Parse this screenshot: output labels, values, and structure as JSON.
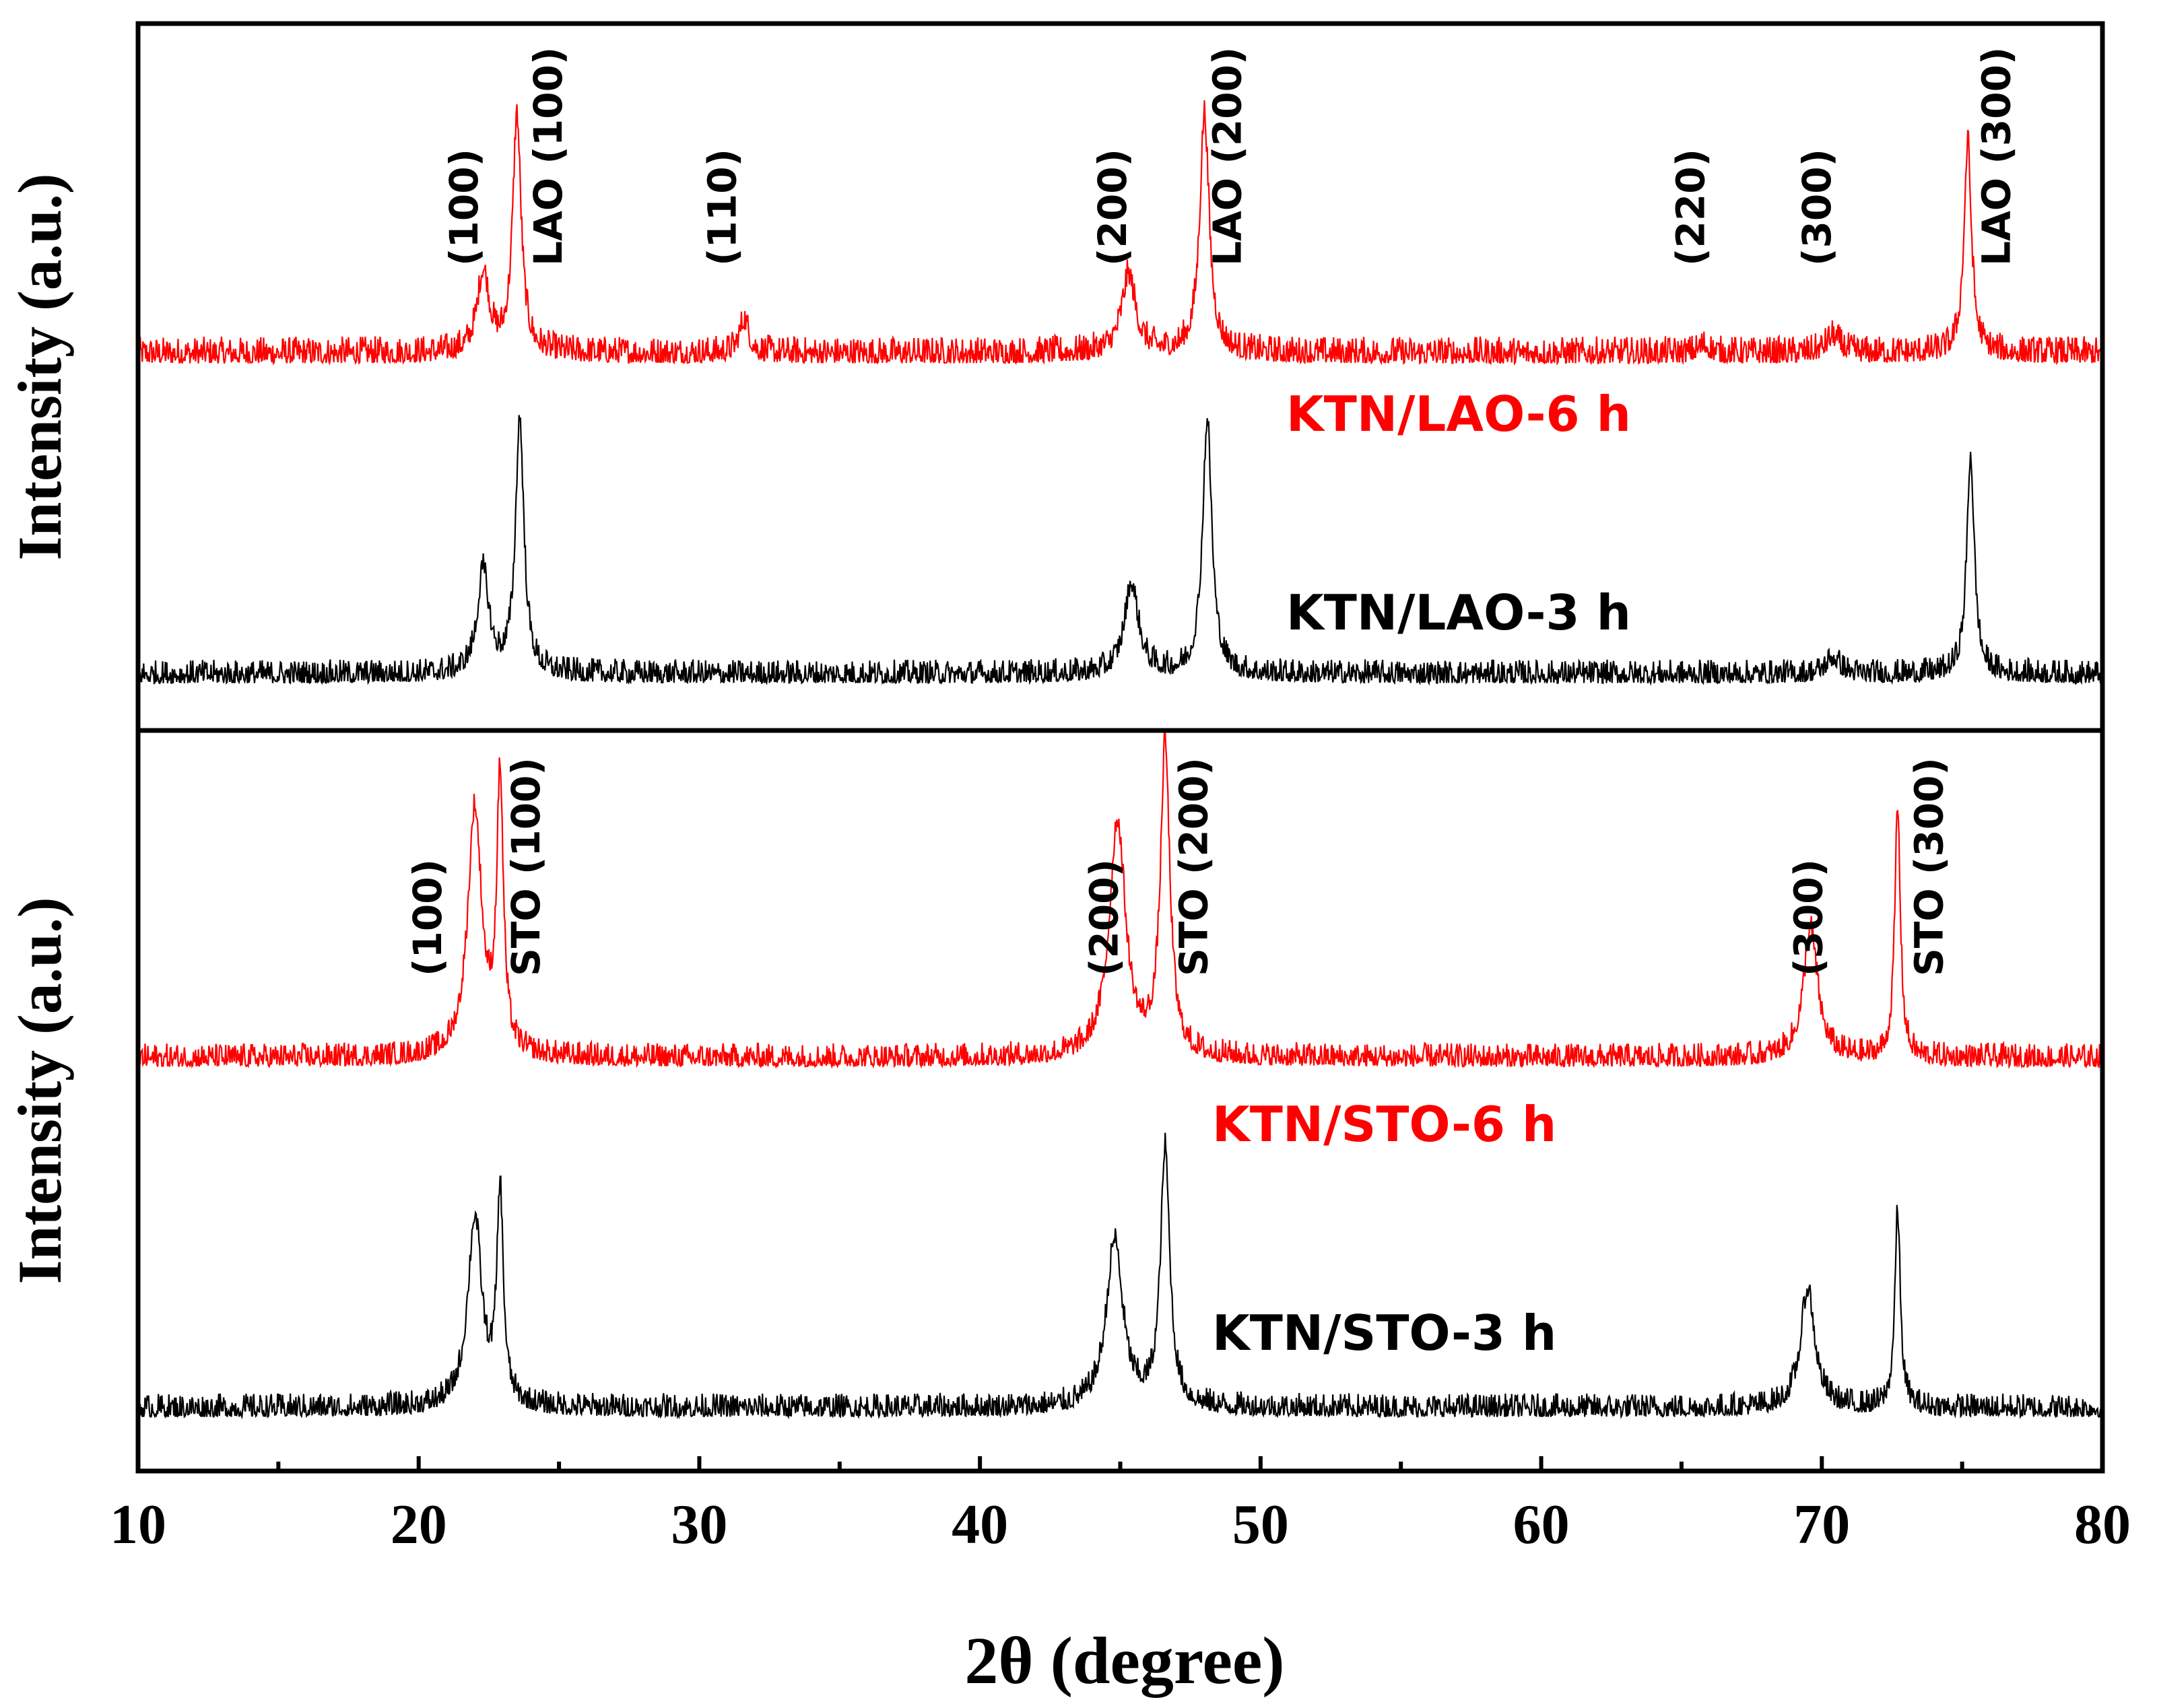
{
  "chart_data": {
    "type": "line",
    "xlabel": "2θ (degree)",
    "xlim": [
      10,
      80
    ],
    "x_ticks": [
      10,
      20,
      30,
      40,
      50,
      60,
      70,
      80
    ],
    "colors": {
      "red": "#ff0000",
      "black": "#000000"
    },
    "panels": [
      {
        "name": "LAO",
        "ylabel": "Intensity (a.u.)",
        "series": [
          {
            "name": "KTN/LAO-6 h",
            "color": "#ff0000",
            "peaks": [
              {
                "x": 22.3,
                "h": 0.28,
                "w": 0.25
              },
              {
                "x": 23.5,
                "h": 0.82,
                "w": 0.18
              },
              {
                "x": 31.6,
                "h": 0.12,
                "w": 0.2
              },
              {
                "x": 45.3,
                "h": 0.27,
                "w": 0.3
              },
              {
                "x": 48.0,
                "h": 0.83,
                "w": 0.2
              },
              {
                "x": 65.8,
                "h": 0.03,
                "w": 0.25
              },
              {
                "x": 70.4,
                "h": 0.06,
                "w": 0.3
              },
              {
                "x": 75.2,
                "h": 0.73,
                "w": 0.16
              }
            ]
          },
          {
            "name": "KTN/LAO-3 h",
            "color": "#000000",
            "peaks": [
              {
                "x": 22.3,
                "h": 0.36,
                "w": 0.25
              },
              {
                "x": 23.6,
                "h": 0.9,
                "w": 0.18
              },
              {
                "x": 45.4,
                "h": 0.32,
                "w": 0.3
              },
              {
                "x": 48.1,
                "h": 0.9,
                "w": 0.2
              },
              {
                "x": 70.4,
                "h": 0.06,
                "w": 0.3
              },
              {
                "x": 75.3,
                "h": 0.78,
                "w": 0.16
              }
            ]
          }
        ],
        "annotations": [
          {
            "x": 22.1,
            "text": "(100)",
            "color": "#000000"
          },
          {
            "x": 25.1,
            "text": "LAO (100)",
            "color": "#000000"
          },
          {
            "x": 31.3,
            "text": "(110)",
            "color": "#000000"
          },
          {
            "x": 45.2,
            "text": "(200)",
            "color": "#000000"
          },
          {
            "x": 49.3,
            "text": "LAO (200)",
            "color": "#000000"
          },
          {
            "x": 65.8,
            "text": "(220)",
            "color": "#000000"
          },
          {
            "x": 70.3,
            "text": "(300)",
            "color": "#000000"
          },
          {
            "x": 76.7,
            "text": "LAO (300)",
            "color": "#000000"
          }
        ]
      },
      {
        "name": "STO",
        "ylabel": "Intensity (a.u.)",
        "series": [
          {
            "name": "KTN/STO-6 h",
            "color": "#ff0000",
            "peaks": [
              {
                "x": 22.0,
                "h": 0.8,
                "w": 0.3
              },
              {
                "x": 22.9,
                "h": 0.88,
                "w": 0.14
              },
              {
                "x": 44.9,
                "h": 0.76,
                "w": 0.35
              },
              {
                "x": 46.6,
                "h": 1.0,
                "w": 0.2
              },
              {
                "x": 69.6,
                "h": 0.42,
                "w": 0.3
              },
              {
                "x": 72.7,
                "h": 0.81,
                "w": 0.12
              }
            ]
          },
          {
            "name": "KTN/STO-3 h",
            "color": "#000000",
            "peaks": [
              {
                "x": 22.0,
                "h": 0.6,
                "w": 0.3
              },
              {
                "x": 22.9,
                "h": 0.66,
                "w": 0.14
              },
              {
                "x": 44.8,
                "h": 0.53,
                "w": 0.35
              },
              {
                "x": 46.6,
                "h": 0.81,
                "w": 0.2
              },
              {
                "x": 69.5,
                "h": 0.38,
                "w": 0.3
              },
              {
                "x": 72.7,
                "h": 0.62,
                "w": 0.12
              }
            ]
          }
        ],
        "annotations": [
          {
            "x": 20.8,
            "text": "(100)",
            "color": "#000000"
          },
          {
            "x": 24.3,
            "text": "STO (100)",
            "color": "#000000"
          },
          {
            "x": 44.9,
            "text": "(200)",
            "color": "#000000"
          },
          {
            "x": 48.1,
            "text": "STO (200)",
            "color": "#000000"
          },
          {
            "x": 70.0,
            "text": "(300)",
            "color": "#000000"
          },
          {
            "x": 74.3,
            "text": "STO (300)",
            "color": "#000000"
          }
        ]
      }
    ]
  }
}
